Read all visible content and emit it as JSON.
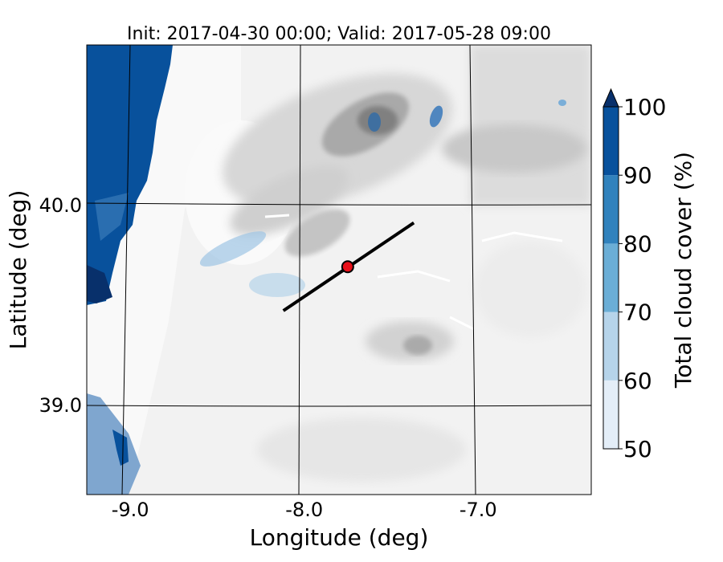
{
  "chart_data": {
    "type": "heatmap",
    "title": "Init: 2017-04-30 00:00; Valid: 2017-05-28 09:00",
    "xlabel": "Longitude (deg)",
    "ylabel": "Latitude (deg)",
    "xlim": [
      -9.25,
      -6.35
    ],
    "ylim": [
      38.55,
      40.8
    ],
    "x_ticks": [
      {
        "value": -9.0,
        "label": "-9.0"
      },
      {
        "value": -8.0,
        "label": "-8.0"
      },
      {
        "value": -7.0,
        "label": "-7.0"
      }
    ],
    "y_ticks": [
      {
        "value": 40.0,
        "label": "40.0"
      },
      {
        "value": 39.0,
        "label": "39.0"
      }
    ],
    "grid": true,
    "transect": {
      "start": [
        -8.12,
        39.47
      ],
      "end": [
        -7.37,
        39.91
      ]
    },
    "point": {
      "lon": -7.75,
      "lat": 39.69
    },
    "colorbar": {
      "label": "Total cloud cover (%)",
      "levels": [
        50,
        60,
        70,
        80,
        90,
        100
      ],
      "tick_labels": [
        "50",
        "60",
        "70",
        "80",
        "90",
        "100"
      ],
      "colors": [
        "#e4eef8",
        "#b6d4ea",
        "#6baed6",
        "#3182bd",
        "#08519c",
        "#08306b"
      ],
      "extend": "max"
    }
  }
}
